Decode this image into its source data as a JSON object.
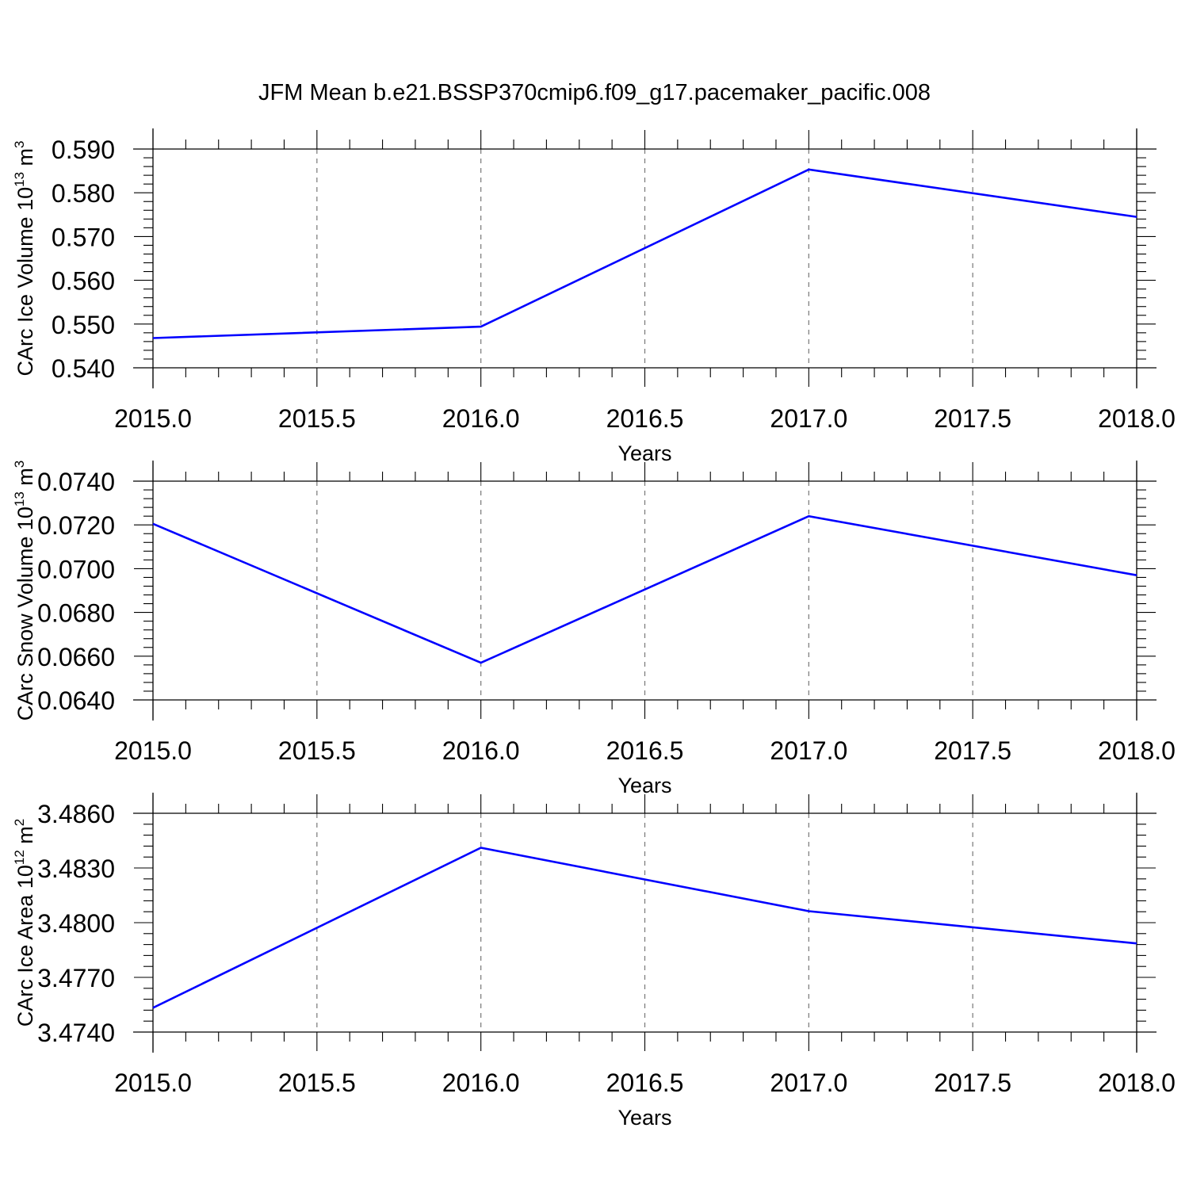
{
  "title": "JFM Mean b.e21.BSSP370cmip6.f09_g17.pacemaker_pacific.008",
  "colors": {
    "line": "#0000ff",
    "axis": "#000000",
    "grid": "#777777",
    "background": "#ffffff"
  },
  "chart_data": [
    {
      "type": "line",
      "ylabel": "CArc Ice Volume 10",
      "ylabel_sup": "13",
      "ylabel_unit": " m",
      "ylabel_unit_sup": "3",
      "xlabel": "Years",
      "xlim": [
        2015.0,
        2018.0
      ],
      "ylim": [
        0.54,
        0.59
      ],
      "xticks": [
        "2015.0",
        "2015.5",
        "2016.0",
        "2016.5",
        "2017.0",
        "2017.5",
        "2018.0"
      ],
      "yticks": [
        "0.540",
        "0.550",
        "0.560",
        "0.570",
        "0.580",
        "0.590"
      ],
      "grid": "vertical dashed at major x ticks",
      "series": [
        {
          "x": [
            2015,
            2016,
            2017,
            2018
          ],
          "values": [
            0.5468,
            0.5494,
            0.5853,
            0.5745
          ]
        }
      ]
    },
    {
      "type": "line",
      "ylabel": "CArc Snow Volume 10",
      "ylabel_sup": "13",
      "ylabel_unit": " m",
      "ylabel_unit_sup": "3",
      "xlabel": "Years",
      "xlim": [
        2015.0,
        2018.0
      ],
      "ylim": [
        0.064,
        0.074
      ],
      "xticks": [
        "2015.0",
        "2015.5",
        "2016.0",
        "2016.5",
        "2017.0",
        "2017.5",
        "2018.0"
      ],
      "yticks": [
        "0.0640",
        "0.0660",
        "0.0680",
        "0.0700",
        "0.0720",
        "0.0740"
      ],
      "grid": "vertical dashed at major x ticks",
      "series": [
        {
          "x": [
            2015,
            2016,
            2017,
            2018
          ],
          "values": [
            0.07205,
            0.0657,
            0.0724,
            0.0697
          ]
        }
      ]
    },
    {
      "type": "line",
      "ylabel": "CArc Ice Area 10",
      "ylabel_sup": "12",
      "ylabel_unit": " m",
      "ylabel_unit_sup": "2",
      "xlabel": "Years",
      "xlim": [
        2015.0,
        2018.0
      ],
      "ylim": [
        3.474,
        3.486
      ],
      "xticks": [
        "2015.0",
        "2015.5",
        "2016.0",
        "2016.5",
        "2017.0",
        "2017.5",
        "2018.0"
      ],
      "yticks": [
        "3.4740",
        "3.4770",
        "3.4800",
        "3.4830",
        "3.4860"
      ],
      "grid": "vertical dashed at major x ticks",
      "series": [
        {
          "x": [
            2015,
            2016,
            2017,
            2018
          ],
          "values": [
            3.47533,
            3.48411,
            3.48063,
            3.47886
          ]
        }
      ]
    }
  ]
}
